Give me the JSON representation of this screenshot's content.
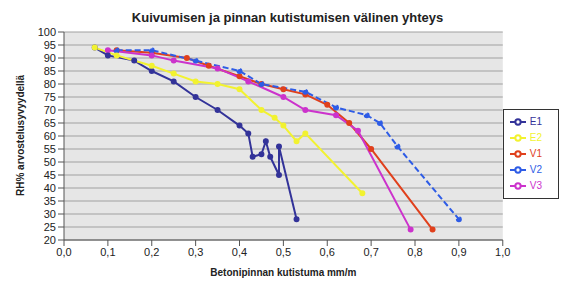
{
  "chart_data": {
    "type": "line",
    "title": "Kuivumisen ja pinnan kutistumisen välinen yhteys",
    "x_label": "Betonipinnan kutistuma mm/m",
    "y_label": "RH% arvostelusyvyydellä",
    "xlim": [
      0,
      1.0
    ],
    "xticks": [
      {
        "value": 0,
        "label": "0,0"
      },
      {
        "value": 0.1,
        "label": "0,1"
      },
      {
        "value": 0.2,
        "label": "0,2"
      },
      {
        "value": 0.3,
        "label": "0,3"
      },
      {
        "value": 0.4,
        "label": "0,4"
      },
      {
        "value": 0.5,
        "label": "0,5"
      },
      {
        "value": 0.6,
        "label": "0,6"
      },
      {
        "value": 0.7,
        "label": "0,7"
      },
      {
        "value": 0.8,
        "label": "0,8"
      },
      {
        "value": 0.9,
        "label": "0,9"
      },
      {
        "value": 1.0,
        "label": "1,0"
      }
    ],
    "ylim": [
      20,
      100
    ],
    "yticks": [
      20,
      25,
      30,
      35,
      40,
      45,
      50,
      55,
      60,
      65,
      70,
      75,
      80,
      85,
      90,
      95,
      100
    ],
    "grid": true,
    "legend": "right",
    "marker": "circle",
    "series": [
      {
        "name": "V1",
        "color": "#e0401c",
        "line_style": "solid",
        "x": [
          0.12,
          0.2,
          0.28,
          0.33,
          0.4,
          0.45,
          0.5,
          0.55,
          0.6,
          0.65,
          0.7,
          0.84
        ],
        "values": [
          93,
          92,
          90,
          87,
          83,
          80,
          78,
          76,
          72,
          65,
          55,
          24
        ]
      },
      {
        "name": "V2",
        "color": "#2e5ce6",
        "line_style": "dashed",
        "x": [
          0.12,
          0.2,
          0.3,
          0.4,
          0.45,
          0.55,
          0.62,
          0.69,
          0.72,
          0.76,
          0.9
        ],
        "values": [
          93,
          93,
          89,
          85,
          80,
          77,
          71,
          68,
          65,
          56,
          28
        ]
      },
      {
        "name": "V3",
        "color": "#cc33cc",
        "line_style": "solid",
        "x": [
          0.1,
          0.2,
          0.25,
          0.35,
          0.42,
          0.5,
          0.55,
          0.62,
          0.67,
          0.79
        ],
        "values": [
          93,
          91,
          89,
          86,
          81,
          75,
          70,
          68,
          62,
          24
        ]
      },
      {
        "name": "E1",
        "color": "#333399",
        "line_style": "solid",
        "x": [
          0.07,
          0.1,
          0.16,
          0.2,
          0.25,
          0.3,
          0.35,
          0.4,
          0.42,
          0.43,
          0.45,
          0.46,
          0.47,
          0.49,
          0.49,
          0.53
        ],
        "values": [
          94,
          91,
          89,
          85,
          81,
          75,
          70,
          64,
          61,
          52,
          53,
          58,
          52,
          45,
          56,
          28
        ]
      },
      {
        "name": "E2",
        "color": "#f2f230",
        "line_style": "solid",
        "x": [
          0.07,
          0.12,
          0.2,
          0.25,
          0.3,
          0.35,
          0.4,
          0.45,
          0.48,
          0.5,
          0.53,
          0.55,
          0.68
        ],
        "values": [
          94,
          91,
          87,
          84,
          81,
          80,
          78,
          70,
          67,
          64,
          58,
          61,
          38
        ]
      }
    ]
  }
}
